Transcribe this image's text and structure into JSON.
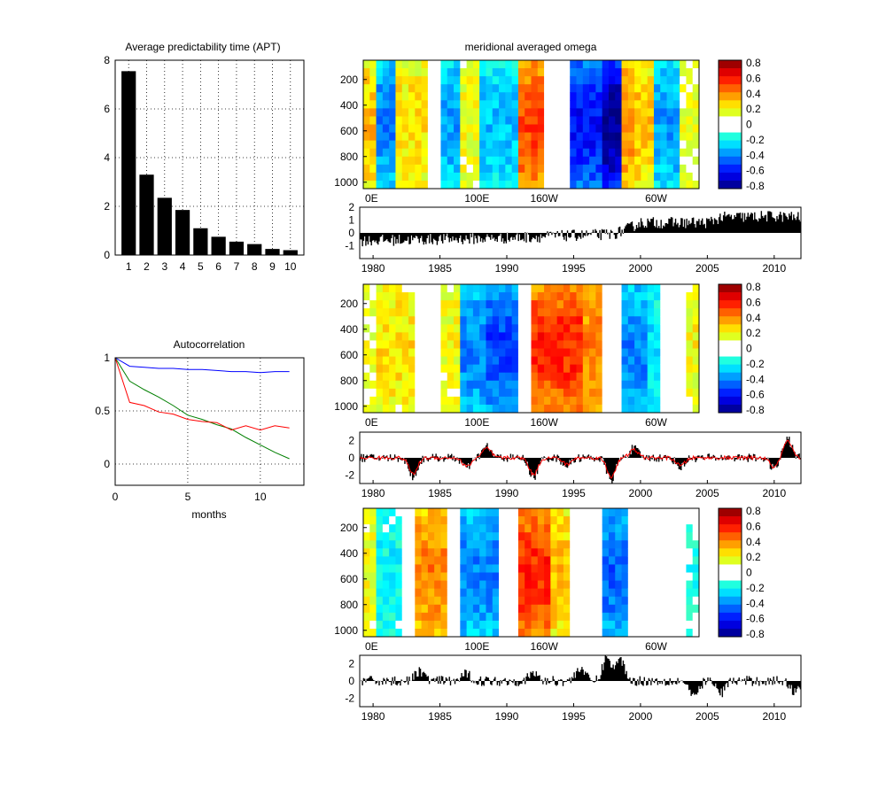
{
  "chart_data": [
    {
      "type": "bar",
      "title": "Average predictability time (APT)",
      "categories": [
        "1",
        "2",
        "3",
        "4",
        "5",
        "6",
        "7",
        "8",
        "9",
        "10"
      ],
      "values": [
        7.55,
        3.3,
        2.35,
        1.85,
        1.1,
        0.75,
        0.55,
        0.45,
        0.25,
        0.2
      ],
      "ylim": [
        0,
        8
      ],
      "yticks": [
        "0",
        "2",
        "4",
        "6",
        "8"
      ],
      "grid": true
    },
    {
      "type": "line",
      "title": "Autocorrelation",
      "xlabel": "months",
      "xlim": [
        0,
        13
      ],
      "ylim": [
        -0.2,
        1
      ],
      "xticks": [
        "0",
        "5",
        "10"
      ],
      "yticks": [
        "0",
        "0.5",
        "1"
      ],
      "grid": true,
      "x": [
        0,
        1,
        2,
        3,
        4,
        5,
        6,
        7,
        8,
        9,
        10,
        11,
        12
      ],
      "series": [
        {
          "color": "#0000ff",
          "values": [
            1,
            0.92,
            0.91,
            0.9,
            0.9,
            0.89,
            0.89,
            0.88,
            0.87,
            0.87,
            0.86,
            0.87,
            0.87
          ]
        },
        {
          "color": "#007f00",
          "values": [
            1,
            0.78,
            0.7,
            0.63,
            0.55,
            0.46,
            0.42,
            0.37,
            0.33,
            0.25,
            0.18,
            0.11,
            0.05
          ]
        },
        {
          "color": "#ff0000",
          "values": [
            1,
            0.58,
            0.55,
            0.49,
            0.47,
            0.42,
            0.4,
            0.39,
            0.32,
            0.36,
            0.32,
            0.36,
            0.34
          ]
        }
      ]
    },
    {
      "type": "heatmap",
      "title": "meridional averaged omega",
      "xticks": [
        "0E",
        "100E",
        "160W",
        "60W"
      ],
      "yticks": [
        "200",
        "400",
        "600",
        "800",
        "1000"
      ],
      "ylim": [
        50,
        1050
      ],
      "colorbar_ticks": [
        "0.8",
        "0.6",
        "0.4",
        "0.2",
        "0",
        "-0.2",
        "-0.4",
        "-0.6",
        "-0.8"
      ],
      "colorbar_range": [
        -0.8,
        0.8
      ],
      "bands": [
        {
          "lon": [
            0,
            8
          ],
          "value": 0.3
        },
        {
          "lon": [
            8,
            22
          ],
          "value": -0.4
        },
        {
          "lon": [
            22,
            40
          ],
          "value": 0.25
        },
        {
          "lon": [
            40,
            48
          ],
          "value": 0.0
        },
        {
          "lon": [
            48,
            62
          ],
          "value": -0.35
        },
        {
          "lon": [
            62,
            74
          ],
          "value": 0.2
        },
        {
          "lon": [
            74,
            96
          ],
          "value": -0.3
        },
        {
          "lon": [
            96,
            114
          ],
          "value": 0.5
        },
        {
          "lon": [
            114,
            126
          ],
          "value": 0.0
        },
        {
          "lon": [
            126,
            148
          ],
          "value": -0.6
        },
        {
          "lon": [
            148,
            160
          ],
          "value": -0.8
        },
        {
          "lon": [
            160,
            168
          ],
          "value": 0.4
        },
        {
          "lon": [
            168,
            182
          ],
          "value": 0.3
        },
        {
          "lon": [
            182,
            196
          ],
          "value": -0.35
        },
        {
          "lon": [
            196,
            208
          ],
          "value": 0.15
        }
      ]
    },
    {
      "type": "bar",
      "xticks": [
        "1980",
        "1985",
        "1990",
        "1995",
        "2000",
        "2005",
        "2010"
      ],
      "xlim": [
        1979,
        2012
      ],
      "yticks": [
        "2",
        "1",
        "0",
        "-1"
      ],
      "ylim": [
        -2,
        2
      ],
      "series": [
        {
          "color": "#000000",
          "trend": [
            [
              1979,
              -0.6
            ],
            [
              1985,
              -0.5
            ],
            [
              1990,
              -0.4
            ],
            [
              1995,
              -0.2
            ],
            [
              1998,
              -0.1
            ],
            [
              1999,
              0.3
            ],
            [
              2000,
              0.8
            ],
            [
              2005,
              0.8
            ],
            [
              2006,
              1.2
            ],
            [
              2010,
              1.3
            ],
            [
              2012,
              1.2
            ]
          ],
          "noise": 0.45
        }
      ]
    },
    {
      "type": "heatmap",
      "xticks": [
        "0E",
        "100E",
        "160W",
        "60W"
      ],
      "yticks": [
        "200",
        "400",
        "600",
        "800",
        "1000"
      ],
      "ylim": [
        50,
        1050
      ],
      "colorbar_ticks": [
        "0.8",
        "0.6",
        "0.4",
        "0.2",
        "0",
        "-0.2",
        "-0.4",
        "-0.6",
        "-0.8"
      ],
      "colorbar_range": [
        -0.8,
        0.8
      ],
      "bands": [
        {
          "lon": [
            0,
            10
          ],
          "value": 0.15
        },
        {
          "lon": [
            10,
            30
          ],
          "value": 0.25
        },
        {
          "lon": [
            30,
            48
          ],
          "value": 0.0
        },
        {
          "lon": [
            48,
            62
          ],
          "value": 0.2
        },
        {
          "lon": [
            62,
            76
          ],
          "value": -0.4
        },
        {
          "lon": [
            76,
            96
          ],
          "value": -0.5
        },
        {
          "lon": [
            96,
            106
          ],
          "value": 0.0
        },
        {
          "lon": [
            106,
            136
          ],
          "value": 0.55
        },
        {
          "lon": [
            136,
            150
          ],
          "value": 0.4
        },
        {
          "lon": [
            150,
            160
          ],
          "value": 0.0
        },
        {
          "lon": [
            160,
            176
          ],
          "value": -0.4
        },
        {
          "lon": [
            176,
            186
          ],
          "value": -0.25
        },
        {
          "lon": [
            186,
            200
          ],
          "value": 0.0
        },
        {
          "lon": [
            200,
            208
          ],
          "value": 0.2
        }
      ]
    },
    {
      "type": "bar",
      "xticks": [
        "1980",
        "1985",
        "1990",
        "1995",
        "2000",
        "2005",
        "2010"
      ],
      "xlim": [
        1979,
        2012
      ],
      "yticks": [
        "2",
        "0",
        "-2"
      ],
      "ylim": [
        -3,
        3
      ],
      "series": [
        {
          "color": "#000000",
          "kind": "bar",
          "events": [
            [
              1983,
              -2.2
            ],
            [
              1987,
              -1.2
            ],
            [
              1988.5,
              1.3
            ],
            [
              1992,
              -2.3
            ],
            [
              1994.5,
              -0.9
            ],
            [
              1997.8,
              -2.6
            ],
            [
              1999.5,
              1.1
            ],
            [
              2003,
              -1.1
            ],
            [
              2010,
              -1.3
            ],
            [
              2011,
              2.2
            ]
          ],
          "noise": 0.5
        },
        {
          "color": "#ff0000",
          "kind": "line",
          "events": [
            [
              1983,
              -2.2
            ],
            [
              1987,
              -1.2
            ],
            [
              1988.5,
              1.3
            ],
            [
              1992,
              -2.3
            ],
            [
              1994.5,
              -0.9
            ],
            [
              1997.8,
              -2.6
            ],
            [
              1999.5,
              1.1
            ],
            [
              2003,
              -1.1
            ],
            [
              2010,
              -1.3
            ],
            [
              2011,
              2.2
            ]
          ],
          "noise": 0.25
        }
      ]
    },
    {
      "type": "heatmap",
      "xticks": [
        "0E",
        "100E",
        "160W",
        "60W"
      ],
      "yticks": [
        "200",
        "400",
        "600",
        "800",
        "1000"
      ],
      "ylim": [
        50,
        1050
      ],
      "colorbar_ticks": [
        "0.8",
        "0.6",
        "0.4",
        "0.2",
        "0",
        "-0.2",
        "-0.4",
        "-0.6",
        "-0.8"
      ],
      "colorbar_range": [
        -0.8,
        0.8
      ],
      "bands": [
        {
          "lon": [
            0,
            8
          ],
          "value": 0.2
        },
        {
          "lon": [
            8,
            24
          ],
          "value": -0.2
        },
        {
          "lon": [
            24,
            34
          ],
          "value": 0.0
        },
        {
          "lon": [
            34,
            52
          ],
          "value": 0.4
        },
        {
          "lon": [
            52,
            62
          ],
          "value": 0.0
        },
        {
          "lon": [
            62,
            84
          ],
          "value": -0.4
        },
        {
          "lon": [
            84,
            96
          ],
          "value": 0.0
        },
        {
          "lon": [
            96,
            118
          ],
          "value": 0.55
        },
        {
          "lon": [
            118,
            130
          ],
          "value": 0.3
        },
        {
          "lon": [
            130,
            148
          ],
          "value": 0.0
        },
        {
          "lon": [
            148,
            166
          ],
          "value": -0.45
        },
        {
          "lon": [
            166,
            182
          ],
          "value": 0.0
        },
        {
          "lon": [
            182,
            200
          ],
          "value": 0.0
        },
        {
          "lon": [
            200,
            208
          ],
          "value": -0.15
        }
      ]
    },
    {
      "type": "bar",
      "xticks": [
        "1980",
        "1985",
        "1990",
        "1995",
        "2000",
        "2005",
        "2010"
      ],
      "xlim": [
        1979,
        2012
      ],
      "yticks": [
        "2",
        "0",
        "-2"
      ],
      "ylim": [
        -3,
        3
      ],
      "series": [
        {
          "color": "#000000",
          "kind": "bar",
          "events": [
            [
              1983.5,
              1.2
            ],
            [
              1987,
              0.8
            ],
            [
              1992,
              0.9
            ],
            [
              1995.5,
              1.6
            ],
            [
              1997.5,
              2.8
            ],
            [
              1998.5,
              2.5
            ],
            [
              2004,
              -2.0
            ],
            [
              2006,
              -1.4
            ],
            [
              2011.5,
              -1.2
            ]
          ],
          "noise": 0.6
        }
      ]
    }
  ]
}
